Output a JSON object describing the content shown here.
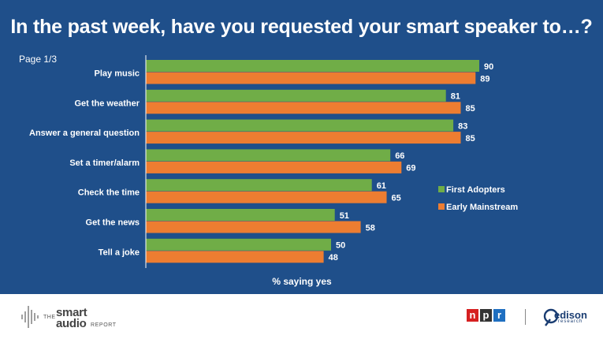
{
  "title": "In the past week, have you requested your smart speaker to…?",
  "page_label": "Page 1/3",
  "footer": {
    "smart_audio": {
      "the": "THE",
      "smart": "smart",
      "audio": "audio",
      "report": "REPORT"
    },
    "npr": [
      "n",
      "p",
      "r"
    ],
    "edison": {
      "name": "edison",
      "sub": "research"
    }
  },
  "colors": {
    "background": "#1f4f8a",
    "first_adopters": "#70ad47",
    "early_mainstream": "#ed7d31",
    "npr": [
      "#d62021",
      "#333333",
      "#1f6fc1"
    ]
  },
  "chart_data": {
    "type": "bar",
    "orientation": "horizontal",
    "categories": [
      "Play music",
      "Get the weather",
      "Answer a general question",
      "Set a timer/alarm",
      "Check the time",
      "Get the news",
      "Tell a joke"
    ],
    "series": [
      {
        "name": "First Adopters",
        "values": [
          90,
          81,
          83,
          66,
          61,
          51,
          50
        ]
      },
      {
        "name": "Early Mainstream",
        "values": [
          89,
          85,
          85,
          69,
          65,
          58,
          48
        ]
      }
    ],
    "xlabel": "% saying yes",
    "xlim": [
      0,
      100
    ],
    "legend_position": "right",
    "data_labels": true,
    "grid": false
  }
}
